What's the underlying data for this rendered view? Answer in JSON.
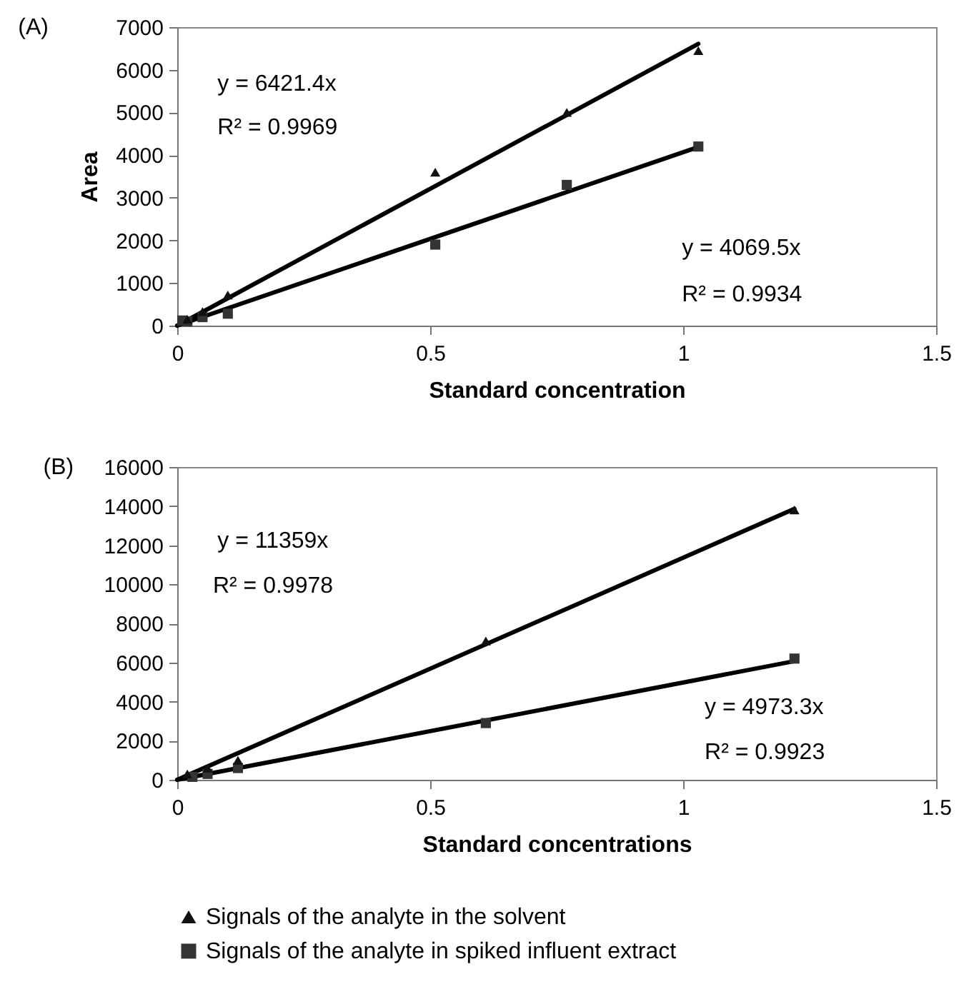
{
  "chart_data": [
    {
      "type": "scatter",
      "title": "(A)",
      "xlabel": "Standard concentration",
      "ylabel": "Area",
      "xlim": [
        0,
        1.5
      ],
      "xticks": [
        0,
        0.5,
        1,
        1.5
      ],
      "ylim": [
        0,
        7000
      ],
      "yticks": [
        0,
        1000,
        2000,
        3000,
        4000,
        5000,
        6000,
        7000
      ],
      "annotations": [
        "y = 6421.4x",
        "R² = 0.9969",
        "y = 4069.5x",
        "R² = 0.9934"
      ],
      "series": [
        {
          "type": "line",
          "color": "#000000",
          "x": [
            0,
            1.03
          ],
          "values": [
            0,
            6610
          ]
        },
        {
          "type": "line",
          "color": "#000000",
          "x": [
            0,
            1.03
          ],
          "values": [
            0,
            4190
          ]
        },
        {
          "marker": "square",
          "color": "#333333",
          "x": [
            0.01,
            0.02,
            0.05,
            0.1,
            0.51,
            0.77,
            1.03
          ],
          "values": [
            120,
            100,
            200,
            280,
            1900,
            3300,
            4200
          ]
        },
        {
          "marker": "triangle",
          "color": "#111111",
          "x": [
            0.02,
            0.05,
            0.1,
            0.51,
            0.77,
            1.03
          ],
          "values": [
            150,
            330,
            720,
            3600,
            5000,
            6450
          ]
        }
      ]
    },
    {
      "type": "scatter",
      "title": "(B)",
      "xlabel": "Standard concentrations",
      "xlim": [
        0,
        1.5
      ],
      "xticks": [
        0,
        0.5,
        1,
        1.5
      ],
      "ylim": [
        0,
        16000
      ],
      "yticks": [
        0,
        2000,
        4000,
        6000,
        8000,
        10000,
        12000,
        14000,
        16000
      ],
      "legend": "bottom",
      "annotations": [
        "y = 11359x",
        "R² = 0.9978",
        "y = 4973.3x",
        "R² = 0.9923"
      ],
      "series": [
        {
          "type": "line",
          "color": "#000000",
          "x": [
            0,
            1.22
          ],
          "values": [
            0,
            13860
          ]
        },
        {
          "type": "line",
          "color": "#000000",
          "x": [
            0,
            1.22
          ],
          "values": [
            0,
            6070
          ]
        },
        {
          "marker": "square",
          "name": "Signals of the analyte in spiked influent extract",
          "color": "#333333",
          "x": [
            0.03,
            0.06,
            0.12,
            0.61,
            1.22
          ],
          "values": [
            150,
            300,
            600,
            2900,
            6200
          ]
        },
        {
          "marker": "triangle",
          "name": "Signals of the analyte in the solvent",
          "color": "#111111",
          "x": [
            0.02,
            0.06,
            0.12,
            0.61,
            1.22
          ],
          "values": [
            300,
            600,
            1000,
            7100,
            13800
          ]
        }
      ]
    }
  ]
}
